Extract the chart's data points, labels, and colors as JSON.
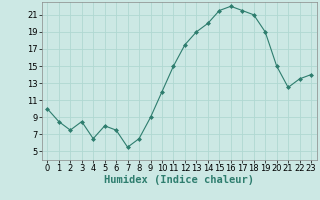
{
  "x": [
    0,
    1,
    2,
    3,
    4,
    5,
    6,
    7,
    8,
    9,
    10,
    11,
    12,
    13,
    14,
    15,
    16,
    17,
    18,
    19,
    20,
    21,
    22,
    23
  ],
  "y": [
    10,
    8.5,
    7.5,
    8.5,
    6.5,
    8,
    7.5,
    5.5,
    6.5,
    9,
    12,
    15,
    17.5,
    19,
    20,
    21.5,
    22,
    21.5,
    21,
    19,
    15,
    12.5,
    13.5,
    14
  ],
  "line_color": "#2e7d6e",
  "marker": "D",
  "marker_size": 2.0,
  "bg_color": "#cce8e4",
  "grid_color": "#b0d8d2",
  "xlabel": "Humidex (Indice chaleur)",
  "xlim": [
    -0.5,
    23.5
  ],
  "ylim": [
    4,
    22.5
  ],
  "yticks": [
    5,
    7,
    9,
    11,
    13,
    15,
    17,
    19,
    21
  ],
  "xticks": [
    0,
    1,
    2,
    3,
    4,
    5,
    6,
    7,
    8,
    9,
    10,
    11,
    12,
    13,
    14,
    15,
    16,
    17,
    18,
    19,
    20,
    21,
    22,
    23
  ],
  "xlabel_fontsize": 7.5,
  "tick_fontsize": 6.0
}
